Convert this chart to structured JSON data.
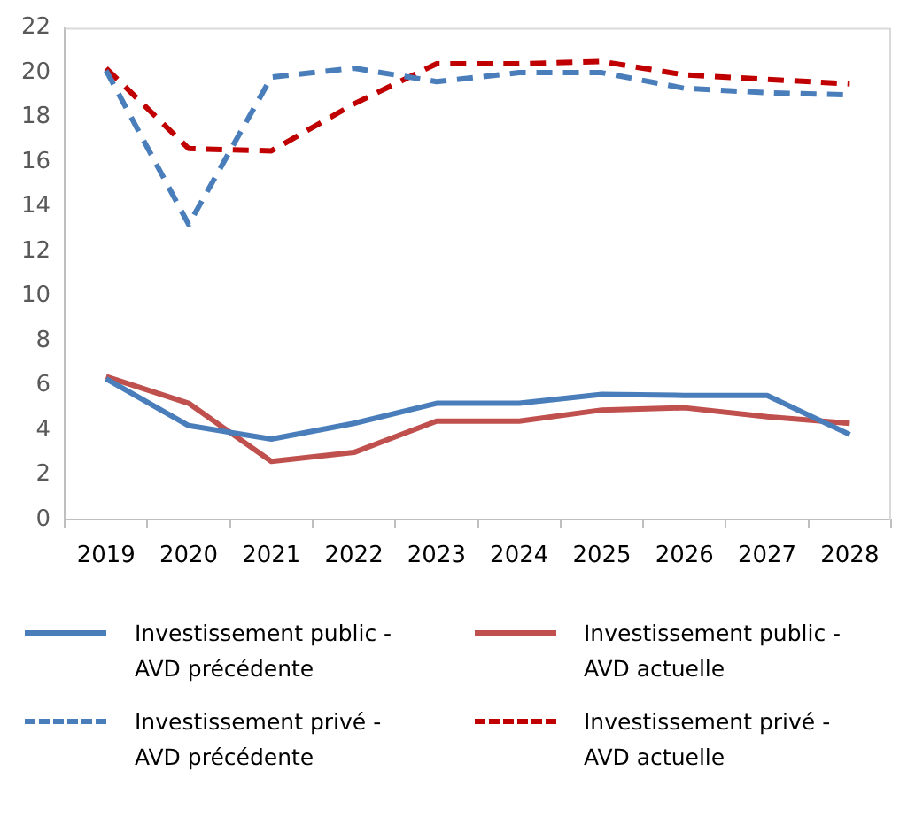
{
  "chart_data": {
    "type": "line",
    "categories": [
      "2019",
      "2020",
      "2021",
      "2022",
      "2023",
      "2024",
      "2025",
      "2026",
      "2027",
      "2028"
    ],
    "series": [
      {
        "name": "Investissement public - AVD précédente",
        "color": "#4a7ebb",
        "line_style": "solid",
        "values": [
          6.3,
          4.2,
          3.6,
          4.3,
          5.2,
          5.2,
          5.6,
          5.55,
          5.55,
          3.8
        ]
      },
      {
        "name": "Investissement public - AVD actuelle",
        "color": "#c0504d",
        "line_style": "solid",
        "values": [
          6.4,
          5.2,
          2.6,
          3.0,
          4.4,
          4.4,
          4.9,
          5.0,
          4.6,
          4.3
        ]
      },
      {
        "name": "Investissement privé - AVD précédente",
        "color": "#4a7ebb",
        "line_style": "dashed",
        "values": [
          20.1,
          13.2,
          19.8,
          20.2,
          19.6,
          20.0,
          20.0,
          19.3,
          19.1,
          19.0
        ]
      },
      {
        "name": "Investissement privé - AVD actuelle",
        "color": "#c00000",
        "line_style": "dashed",
        "values": [
          20.2,
          16.6,
          16.5,
          18.6,
          20.4,
          20.4,
          20.5,
          19.9,
          19.7,
          19.5
        ]
      }
    ],
    "ylim": [
      0,
      22
    ],
    "yticks": [
      0,
      2,
      4,
      6,
      8,
      10,
      12,
      14,
      16,
      18,
      20,
      22
    ],
    "grid": false,
    "legend": "bottom",
    "marker": "none"
  }
}
